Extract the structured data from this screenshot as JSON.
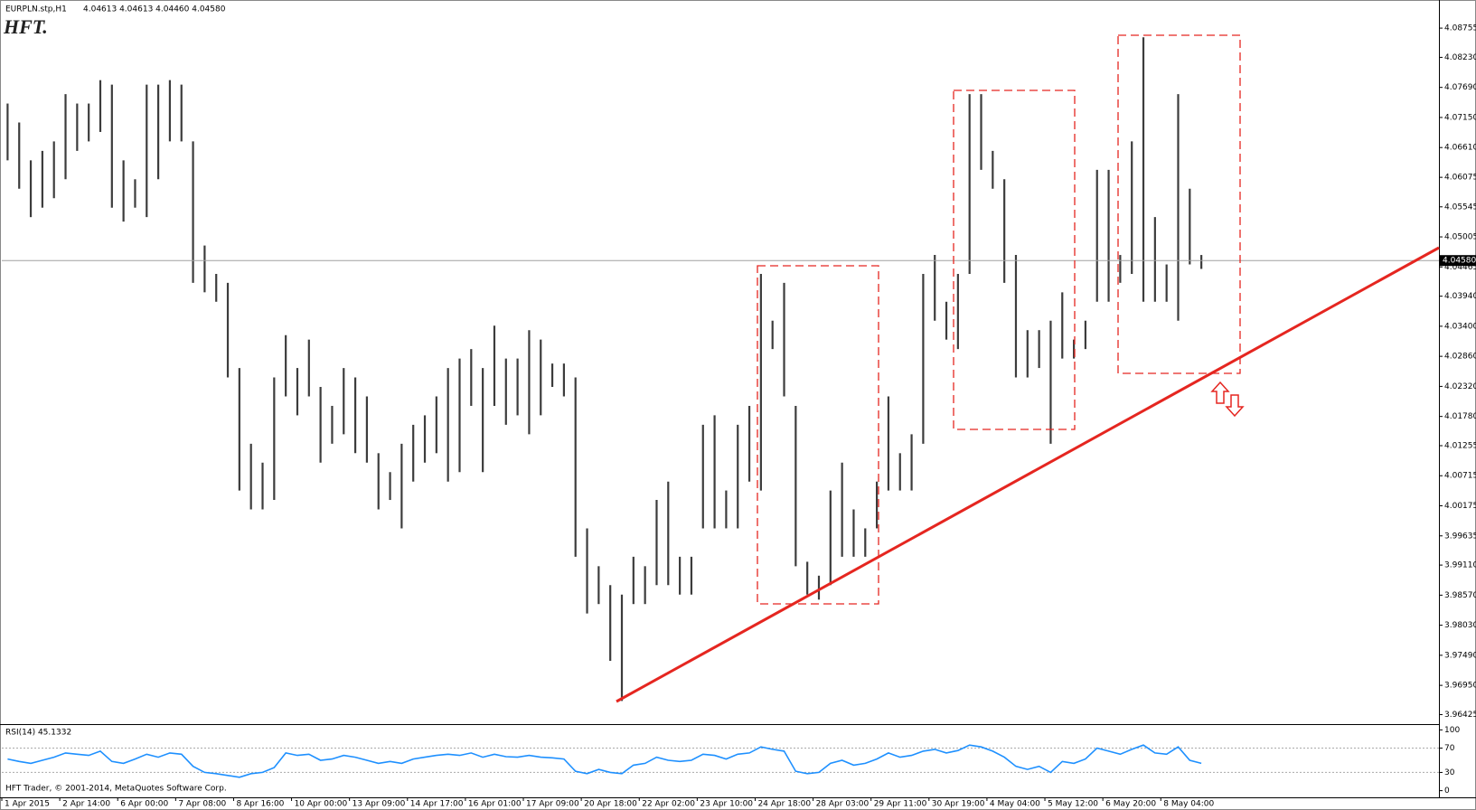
{
  "chart_data": [
    {
      "type": "ohlc",
      "title": "EURPLN.stp,H1",
      "subtitle": "4.04613 4.04613 4.04460 4.04580",
      "logo": "HFT.",
      "color": "#3c3c3c",
      "categories": [
        "1 Apr 2015",
        null,
        null,
        null,
        null,
        "2 Apr 14:00",
        null,
        null,
        null,
        null,
        "6 Apr 00:00",
        null,
        null,
        null,
        null,
        "7 Apr 08:00",
        null,
        null,
        null,
        null,
        "8 Apr 16:00",
        null,
        null,
        null,
        null,
        "10 Apr 00:00",
        null,
        null,
        null,
        null,
        "13 Apr 09:00",
        null,
        null,
        null,
        null,
        "14 Apr 17:00",
        null,
        null,
        null,
        null,
        "16 Apr 01:00",
        null,
        null,
        null,
        null,
        "17 Apr 09:00",
        null,
        null,
        null,
        null,
        "20 Apr 18:00",
        null,
        null,
        null,
        null,
        "22 Apr 02:00",
        null,
        null,
        null,
        null,
        "23 Apr 10:00",
        null,
        null,
        null,
        null,
        "24 Apr 18:00",
        null,
        null,
        null,
        null,
        "28 Apr 03:00",
        null,
        null,
        null,
        null,
        "29 Apr 11:00",
        null,
        null,
        null,
        null,
        "30 Apr 19:00",
        null,
        null,
        null,
        null,
        "4 May 04:00",
        null,
        null,
        null,
        null,
        "5 May 12:00",
        null,
        null,
        null,
        null,
        "6 May 20:00",
        null,
        null,
        null,
        null,
        "8 May 04:00",
        null,
        null,
        null,
        null,
        null,
        null,
        null,
        null,
        null,
        null,
        null,
        null,
        null,
        null,
        null,
        null,
        null,
        null,
        null,
        null,
        null,
        null,
        null
      ],
      "high": [
        4.074,
        4.0706,
        4.0638,
        4.0655,
        4.0672,
        4.0757,
        4.074,
        4.074,
        4.0782,
        4.0774,
        4.0638,
        4.0604,
        4.0774,
        4.0774,
        4.0782,
        4.0774,
        4.0672,
        4.0485,
        4.0434,
        4.0418,
        4.0265,
        4.0129,
        4.0095,
        4.0248,
        4.0324,
        4.0265,
        4.0316,
        4.0231,
        4.0197,
        4.0265,
        4.0248,
        4.0214,
        4.0112,
        4.0078,
        4.0129,
        4.0163,
        4.018,
        4.0214,
        4.0265,
        4.0282,
        4.0299,
        4.0265,
        4.0341,
        4.0282,
        4.0282,
        4.0333,
        4.0316,
        4.0273,
        4.0273,
        4.0248,
        3.9977,
        3.9909,
        3.9875,
        3.9858,
        3.9926,
        3.9909,
        4.0028,
        4.0061,
        3.9926,
        3.9926,
        4.0163,
        4.018,
        4.0045,
        4.0163,
        4.0197,
        4.0434,
        4.035,
        4.0418,
        4.0197,
        3.9917,
        3.9892,
        4.0045,
        4.0095,
        4.0011,
        3.9977,
        4.0061,
        4.0214,
        4.0112,
        4.0146,
        4.0434,
        4.0468,
        4.0384,
        4.0434,
        4.0757,
        4.0757,
        4.0655,
        4.0604,
        4.0468,
        4.0333,
        4.0333,
        4.035,
        4.0401,
        4.0316,
        4.035,
        4.0621,
        4.0621,
        4.0468,
        4.0672,
        4.0859,
        4.0536,
        4.0451,
        4.0757,
        4.0587,
        4.0468,
        null,
        null,
        null,
        null,
        null,
        null,
        null,
        null,
        null,
        null,
        null,
        null,
        null,
        null,
        null,
        null,
        null,
        null,
        null,
        null
      ],
      "low": [
        4.0638,
        4.0587,
        4.0536,
        4.0553,
        4.057,
        4.0604,
        4.0655,
        4.0672,
        4.0689,
        4.0553,
        4.0528,
        4.0553,
        4.0536,
        4.0604,
        4.0672,
        4.0672,
        4.0418,
        4.0401,
        4.0384,
        4.0248,
        4.0045,
        4.0011,
        4.0011,
        4.0028,
        4.0214,
        4.018,
        4.0214,
        4.0095,
        4.0129,
        4.0146,
        4.0112,
        4.0095,
        4.0011,
        4.0028,
        3.9977,
        4.0061,
        4.0095,
        4.0112,
        4.0061,
        4.0078,
        4.0197,
        4.0078,
        4.0197,
        4.0163,
        4.018,
        4.0146,
        4.018,
        4.0231,
        4.0214,
        3.9926,
        3.9824,
        3.9841,
        3.9739,
        3.9667,
        3.9841,
        3.9841,
        3.9875,
        3.9875,
        3.9858,
        3.9858,
        3.9977,
        3.9977,
        3.9977,
        3.9977,
        4.0061,
        4.0045,
        4.0299,
        4.0214,
        3.9909,
        3.9858,
        3.9849,
        3.9875,
        3.9926,
        3.9926,
        3.9926,
        3.9977,
        4.0045,
        4.0045,
        4.0045,
        4.0129,
        4.035,
        4.0316,
        4.0299,
        4.0434,
        4.0621,
        4.0587,
        4.0418,
        4.0248,
        4.0248,
        4.0265,
        4.0129,
        4.0282,
        4.0282,
        4.0299,
        4.0384,
        4.0384,
        4.0418,
        4.0434,
        4.0384,
        4.0384,
        4.0384,
        4.035,
        4.0451,
        4.0443,
        null,
        null,
        null,
        null,
        null,
        null,
        null,
        null,
        null,
        null,
        null,
        null,
        null,
        null,
        null,
        null,
        null,
        null,
        null,
        null
      ],
      "ylim": [
        3.9627,
        4.0913
      ],
      "yticks": [
        4.08755,
        {
          "value": 4.0823,
          "label": "4.08230"
        },
        {
          "value": 4.0769,
          "label": "4.07690"
        },
        {
          "value": 4.0715,
          "label": "4.07150"
        },
        {
          "value": 4.0661,
          "label": "4.06610"
        },
        4.06075,
        4.05545,
        4.05005,
        4.04465,
        {
          "value": 4.0394,
          "label": "4.03940"
        },
        {
          "value": 4.034,
          "label": "4.03400"
        },
        {
          "value": 4.0286,
          "label": "4.02860"
        },
        {
          "value": 4.0232,
          "label": "4.02320"
        },
        {
          "value": 4.0178,
          "label": "4.01780"
        },
        4.01255,
        4.00715,
        4.00175,
        3.99635,
        {
          "value": 3.9911,
          "label": "3.99110"
        },
        {
          "value": 3.9857,
          "label": "3.98570"
        },
        {
          "value": 3.9803,
          "label": "3.98030"
        },
        {
          "value": 3.9749,
          "label": "3.97490"
        },
        {
          "value": 3.9695,
          "label": "3.96950"
        },
        3.96425
      ],
      "last_price": {
        "value": 4.0458,
        "label": "4.04580"
      }
    },
    {
      "type": "line",
      "title": "RSI(14) 45.1332",
      "copyright": "HFT Trader, © 2001-2014, MetaQuotes Software Corp.",
      "color": "#1e90ff",
      "values": [
        52,
        48,
        45,
        50,
        55,
        62,
        60,
        58,
        65,
        48,
        45,
        52,
        60,
        55,
        62,
        60,
        40,
        30,
        28,
        25,
        22,
        28,
        30,
        38,
        62,
        58,
        60,
        50,
        52,
        58,
        55,
        50,
        45,
        48,
        45,
        52,
        55,
        58,
        60,
        58,
        62,
        55,
        60,
        56,
        55,
        58,
        55,
        54,
        52,
        32,
        28,
        35,
        30,
        28,
        42,
        45,
        55,
        50,
        48,
        50,
        60,
        58,
        52,
        60,
        62,
        72,
        68,
        65,
        32,
        28,
        30,
        45,
        50,
        42,
        45,
        52,
        62,
        55,
        58,
        65,
        68,
        62,
        66,
        75,
        72,
        65,
        55,
        40,
        35,
        40,
        30,
        48,
        45,
        52,
        70,
        65,
        60,
        68,
        75,
        62,
        60,
        72,
        50,
        45,
        null,
        null,
        null,
        null,
        null,
        null,
        null,
        null,
        null,
        null,
        null,
        null,
        null,
        null,
        null,
        null,
        null,
        null,
        null,
        null
      ],
      "ylim": [
        -11,
        108
      ],
      "yticks": [
        100,
        70,
        30,
        0
      ]
    }
  ]
}
